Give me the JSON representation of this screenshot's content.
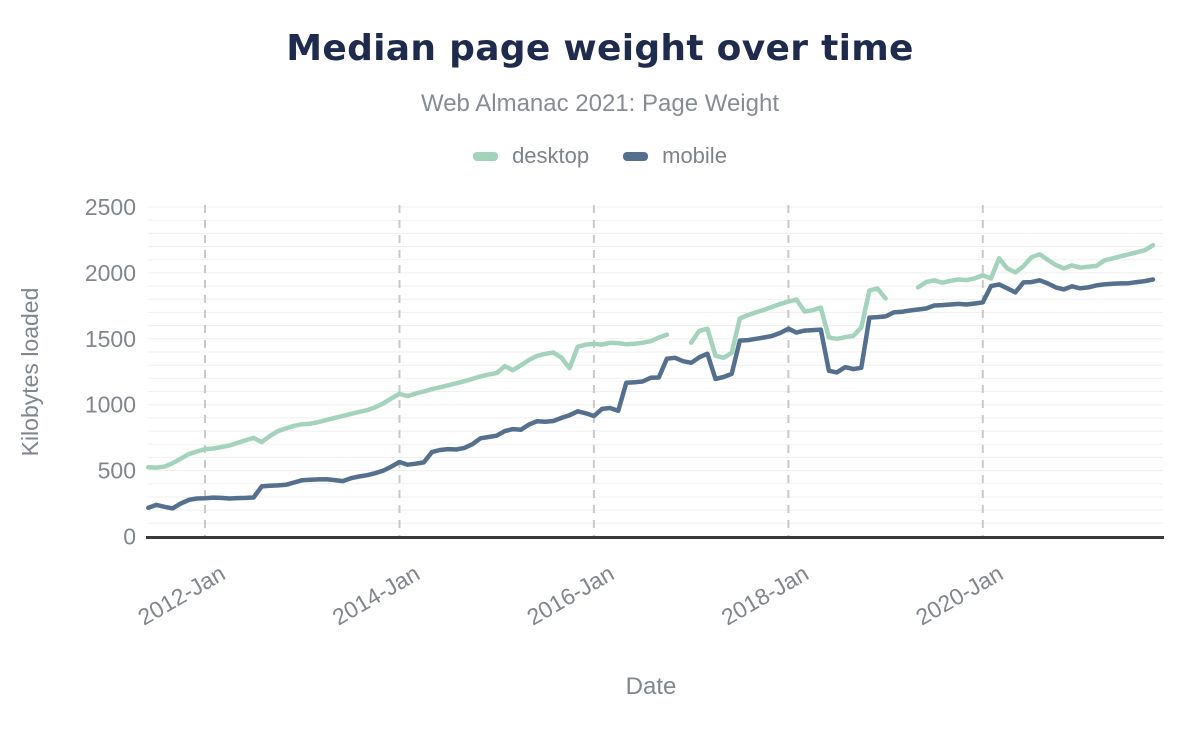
{
  "chart_data": {
    "type": "line",
    "title": "Median page weight over time",
    "subtitle": "Web Almanac 2021: Page Weight",
    "xlabel": "Date",
    "ylabel": "Kilobytes loaded",
    "x_start": "2011-06",
    "x_interval": "month",
    "x_tick_labels": [
      "2012-Jan",
      "2014-Jan",
      "2016-Jan",
      "2018-Jan",
      "2020-Jan"
    ],
    "ylim": [
      0,
      2500
    ],
    "yticks": [
      0,
      500,
      1000,
      1500,
      2000,
      2500
    ],
    "grid": {
      "minor_step": 100,
      "vertical_style": "dashed"
    },
    "legend_position": "top",
    "colors": {
      "title": "#1e2b4d",
      "subtitle": "#878c93",
      "axis_text": "#81868d",
      "axis_line": "#37393c",
      "gridline_minor": "#efefef",
      "gridline_vertical": "#c9c9c9"
    },
    "series": [
      {
        "name": "desktop",
        "color": "#a3d2bd",
        "values": [
          525,
          523,
          530,
          556,
          590,
          625,
          645,
          663,
          668,
          678,
          690,
          710,
          730,
          748,
          716,
          762,
          800,
          820,
          840,
          852,
          856,
          868,
          885,
          900,
          915,
          930,
          945,
          958,
          980,
          1010,
          1048,
          1082,
          1065,
          1085,
          1100,
          1118,
          1132,
          1147,
          1162,
          1178,
          1196,
          1215,
          1228,
          1240,
          1292,
          1262,
          1300,
          1340,
          1370,
          1386,
          1396,
          1356,
          1277,
          1440,
          1455,
          1462,
          1456,
          1470,
          1467,
          1458,
          1463,
          1470,
          1482,
          1510,
          1532,
          null,
          null,
          1471,
          1560,
          1577,
          1372,
          1356,
          1394,
          1653,
          1680,
          1700,
          1720,
          1742,
          1765,
          1782,
          1798,
          1707,
          1716,
          1737,
          1510,
          1500,
          1512,
          1522,
          1585,
          1867,
          1882,
          1806,
          null,
          null,
          null,
          1890,
          1930,
          1944,
          1926,
          1940,
          1950,
          1945,
          1958,
          1981,
          1958,
          2111,
          2034,
          2004,
          2050,
          2118,
          2141,
          2100,
          2060,
          2034,
          2057,
          2040,
          2046,
          2052,
          2095,
          2110,
          2126,
          2141,
          2156,
          2172,
          2210
        ]
      },
      {
        "name": "mobile",
        "color": "#55708e",
        "values": [
          218,
          240,
          225,
          213,
          250,
          278,
          288,
          290,
          295,
          293,
          288,
          291,
          293,
          296,
          380,
          385,
          388,
          392,
          410,
          427,
          430,
          433,
          434,
          428,
          420,
          442,
          455,
          465,
          480,
          500,
          530,
          565,
          545,
          552,
          562,
          640,
          656,
          663,
          660,
          672,
          700,
          745,
          755,
          765,
          800,
          815,
          810,
          850,
          875,
          870,
          876,
          900,
          920,
          950,
          935,
          914,
          968,
          975,
          953,
          1166,
          1170,
          1176,
          1204,
          1206,
          1349,
          1356,
          1330,
          1318,
          1360,
          1387,
          1196,
          1210,
          1234,
          1486,
          1490,
          1500,
          1510,
          1522,
          1545,
          1577,
          1547,
          1562,
          1566,
          1570,
          1257,
          1245,
          1285,
          1270,
          1280,
          1661,
          1665,
          1670,
          1700,
          1705,
          1715,
          1722,
          1730,
          1753,
          1756,
          1760,
          1765,
          1760,
          1768,
          1776,
          1900,
          1913,
          1883,
          1852,
          1928,
          1930,
          1944,
          1920,
          1890,
          1875,
          1898,
          1883,
          1890,
          1905,
          1913,
          1918,
          1920,
          1922,
          1930,
          1938,
          1950
        ]
      }
    ]
  }
}
